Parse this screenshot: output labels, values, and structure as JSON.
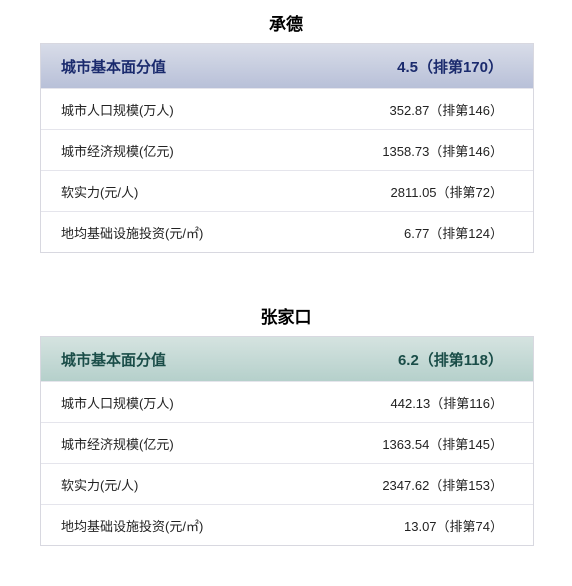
{
  "cities": [
    {
      "name": "承德",
      "header_bg": "linear-gradient(to bottom, #d8dce8, #b8c0d8)",
      "header_text_color": "#1a2a6d",
      "header_label": "城市基本面分值",
      "header_value": "4.5（排第170）",
      "rows": [
        {
          "label": "城市人口规模(万人)",
          "value": "352.87（排第146）"
        },
        {
          "label": "城市经济规模(亿元)",
          "value": "1358.73（排第146）"
        },
        {
          "label": "软实力(元/人)",
          "value": "2811.05（排第72）"
        },
        {
          "label": "地均基础设施投资(元/㎡)",
          "value": "6.77（排第124）"
        }
      ]
    },
    {
      "name": "张家口",
      "header_bg": "linear-gradient(to bottom, #d5e3e0, #b5d0cb)",
      "header_text_color": "#1a4d48",
      "header_label": "城市基本面分值",
      "header_value": "6.2（排第118）",
      "rows": [
        {
          "label": "城市人口规模(万人)",
          "value": "442.13（排第116）"
        },
        {
          "label": "城市经济规模(亿元)",
          "value": "1363.54（排第145）"
        },
        {
          "label": "软实力(元/人)",
          "value": "2347.62（排第153）"
        },
        {
          "label": "地均基础设施投资(元/㎡)",
          "value": "13.07（排第74）"
        }
      ]
    }
  ]
}
